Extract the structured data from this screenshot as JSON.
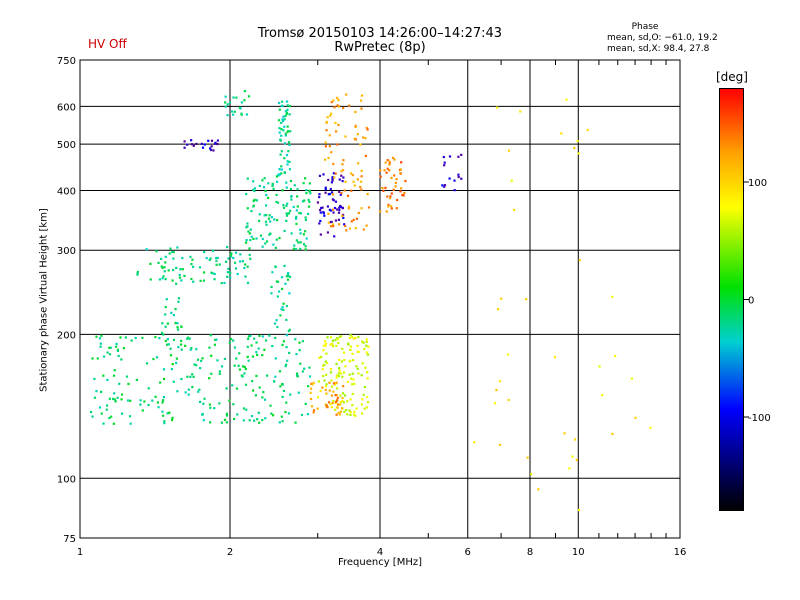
{
  "header": {
    "title": "Tromsø 20150103 14:26:00–14:27:43",
    "subtitle": "RwPretec (8p)",
    "status": "HV Off",
    "phase_title": "Phase",
    "phase_o": "mean, sd,O: −61.0, 19.2",
    "phase_x": "mean, sd,X:  98.4, 27.8"
  },
  "colorbar": {
    "unit": "[deg]",
    "ticks": [
      {
        "label": "100",
        "value": 100
      },
      {
        "label": "0",
        "value": 0
      },
      {
        "label": "-100",
        "value": -100
      }
    ],
    "range": [
      -180,
      180
    ]
  },
  "chart_data": {
    "type": "scatter",
    "title": "Tromsø 20150103 14:26:00–14:27:43",
    "subtitle": "RwPretec (8p)",
    "xlabel": "Frequency [MHz]",
    "ylabel": "Stationary phase Virtual Height [km]",
    "xscale": "log",
    "yscale": "log",
    "xlim": [
      1,
      16
    ],
    "ylim": [
      75,
      750
    ],
    "grid": true,
    "x_ticks": [
      1,
      2,
      4,
      6,
      8,
      10,
      16
    ],
    "y_ticks": [
      75,
      100,
      200,
      300,
      400,
      500,
      600,
      750
    ],
    "color_variable": "Phase [deg]",
    "color_range": [
      -180,
      180
    ],
    "clusters": [
      {
        "name": "F-layer cyan trace",
        "phase": -20,
        "x": [
          1.3,
          2.2
        ],
        "y": [
          255,
          305
        ],
        "n": 90
      },
      {
        "name": "F-layer cyan rise",
        "phase": -18,
        "x": [
          2.15,
          2.9
        ],
        "y": [
          300,
          430
        ],
        "n": 130
      },
      {
        "name": "F-layer cyan top",
        "phase": -22,
        "x": [
          2.5,
          2.65
        ],
        "y": [
          430,
          640
        ],
        "n": 55
      },
      {
        "name": "F-layer cyan spread",
        "phase": -20,
        "x": [
          1.95,
          2.2
        ],
        "y": [
          560,
          650
        ],
        "n": 20
      },
      {
        "name": "F2 blue band",
        "phase": -120,
        "x": [
          1.6,
          1.9
        ],
        "y": [
          485,
          510
        ],
        "n": 20
      },
      {
        "name": "F2 blue cluster",
        "phase": -115,
        "x": [
          3.0,
          3.4
        ],
        "y": [
          320,
          440
        ],
        "n": 60
      },
      {
        "name": "F2 orange cluster",
        "phase": 130,
        "x": [
          3.1,
          3.8
        ],
        "y": [
          330,
          640
        ],
        "n": 90
      },
      {
        "name": "F2 orange right",
        "phase": 140,
        "x": [
          4.0,
          4.5
        ],
        "y": [
          360,
          470
        ],
        "n": 45
      },
      {
        "name": "F2 blue right",
        "phase": -110,
        "x": [
          5.3,
          5.9
        ],
        "y": [
          400,
          480
        ],
        "n": 15
      },
      {
        "name": "E-region cyan",
        "phase": -15,
        "x": [
          1.05,
          2.9
        ],
        "y": [
          130,
          200
        ],
        "n": 260
      },
      {
        "name": "E-region cyan column",
        "phase": -18,
        "x": [
          1.45,
          1.6
        ],
        "y": [
          180,
          240
        ],
        "n": 25
      },
      {
        "name": "E-region cyan upper",
        "phase": -20,
        "x": [
          2.4,
          2.65
        ],
        "y": [
          190,
          280
        ],
        "n": 35
      },
      {
        "name": "E-region yellow-green",
        "phase": 70,
        "x": [
          3.0,
          3.8
        ],
        "y": [
          135,
          200
        ],
        "n": 140
      },
      {
        "name": "E-region orange",
        "phase": 130,
        "x": [
          2.9,
          3.4
        ],
        "y": [
          135,
          160
        ],
        "n": 40
      },
      {
        "name": "Scattered noise",
        "phase": 90,
        "x": [
          6.0,
          14.0
        ],
        "y": [
          85,
          650
        ],
        "n": 40
      }
    ]
  }
}
